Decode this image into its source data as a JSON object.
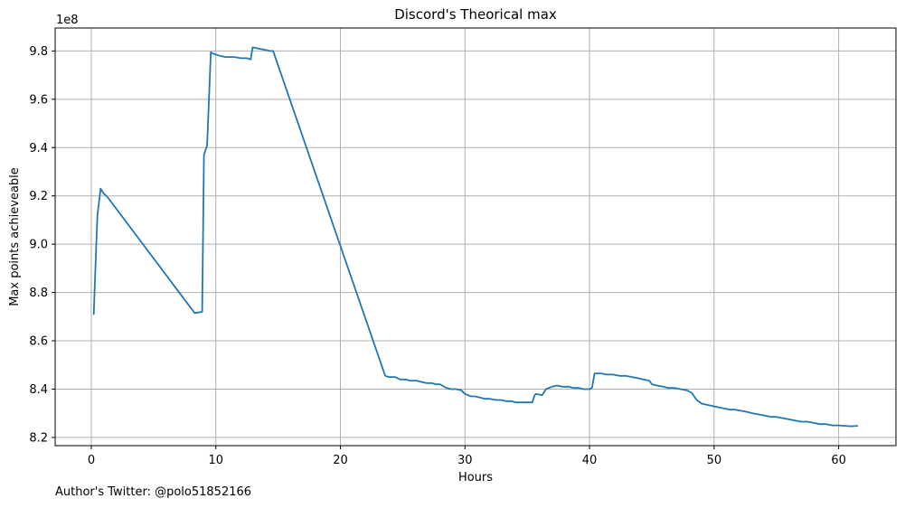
{
  "footer_text": "Author's Twitter: @polo51852166",
  "chart_data": {
    "type": "line",
    "title": "Discord's Theorical max",
    "xlabel": "Hours",
    "ylabel": "Max points achieveable",
    "y_offset_text": "1e8",
    "xlim": [
      -2.9,
      64.6
    ],
    "ylim": [
      8.166,
      9.895
    ],
    "x_ticks": [
      0,
      10,
      20,
      30,
      40,
      50,
      60
    ],
    "y_ticks": [
      8.2,
      8.4,
      8.6,
      8.8,
      9.0,
      9.2,
      9.4,
      9.6,
      9.8
    ],
    "y_tick_labels": [
      "8.2",
      "8.4",
      "8.6",
      "8.8",
      "9.0",
      "9.2",
      "9.4",
      "9.6",
      "9.8"
    ],
    "grid": true,
    "color": "#1f77b4",
    "series": [
      {
        "x": [
          0.2,
          0.4,
          0.5,
          0.75,
          1.0,
          1.3,
          8.3,
          8.9,
          9.05,
          9.3,
          9.6,
          9.75,
          10.3,
          10.8,
          11.5,
          12.0,
          12.5,
          12.8,
          12.95,
          13.4,
          13.9,
          14.3,
          14.6,
          23.6,
          23.9,
          24.4,
          24.8,
          25.2,
          25.6,
          26.1,
          26.5,
          26.9,
          27.3,
          27.7,
          28.0,
          28.5,
          28.9,
          29.3,
          29.7,
          30.0,
          30.5,
          30.8,
          31.2,
          31.6,
          32.0,
          32.5,
          32.9,
          33.3,
          33.7,
          34.1,
          34.5,
          35.0,
          35.4,
          35.6,
          35.7,
          36.2,
          36.5,
          37.0,
          37.4,
          37.8,
          38.3,
          38.7,
          39.1,
          39.5,
          40.0,
          40.2,
          40.4,
          40.9,
          41.4,
          41.9,
          42.4,
          42.9,
          43.4,
          43.9,
          44.3,
          44.8,
          45.0,
          45.4,
          45.9,
          46.3,
          46.8,
          47.3,
          47.8,
          48.2,
          48.6,
          49.0,
          49.4,
          49.9,
          50.3,
          50.8,
          51.3,
          51.7,
          52.2,
          52.7,
          53.1,
          53.6,
          54.1,
          54.6,
          55.0,
          55.5,
          56.0,
          56.5,
          57.0,
          57.5,
          58.0,
          58.5,
          59.0,
          59.5,
          60.0,
          60.5,
          61.0,
          61.5
        ],
        "y": [
          8.71,
          9.0,
          9.12,
          9.23,
          9.21,
          9.195,
          8.715,
          8.72,
          9.37,
          9.41,
          9.795,
          9.79,
          9.78,
          9.775,
          9.775,
          9.77,
          9.77,
          9.765,
          9.815,
          9.81,
          9.805,
          9.8,
          9.8,
          8.455,
          8.45,
          8.45,
          8.44,
          8.44,
          8.435,
          8.435,
          8.43,
          8.425,
          8.425,
          8.42,
          8.42,
          8.405,
          8.4,
          8.4,
          8.395,
          8.38,
          8.37,
          8.37,
          8.365,
          8.36,
          8.36,
          8.355,
          8.355,
          8.35,
          8.35,
          8.345,
          8.345,
          8.345,
          8.345,
          8.375,
          8.38,
          8.375,
          8.4,
          8.41,
          8.415,
          8.41,
          8.41,
          8.405,
          8.405,
          8.4,
          8.4,
          8.405,
          8.465,
          8.465,
          8.46,
          8.46,
          8.455,
          8.455,
          8.45,
          8.445,
          8.44,
          8.435,
          8.42,
          8.415,
          8.41,
          8.405,
          8.405,
          8.4,
          8.395,
          8.385,
          8.355,
          8.34,
          8.335,
          8.33,
          8.325,
          8.32,
          8.315,
          8.315,
          8.31,
          8.305,
          8.3,
          8.295,
          8.29,
          8.285,
          8.285,
          8.28,
          8.275,
          8.27,
          8.265,
          8.265,
          8.26,
          8.255,
          8.255,
          8.25,
          8.25,
          8.248,
          8.246,
          8.248
        ]
      }
    ]
  }
}
